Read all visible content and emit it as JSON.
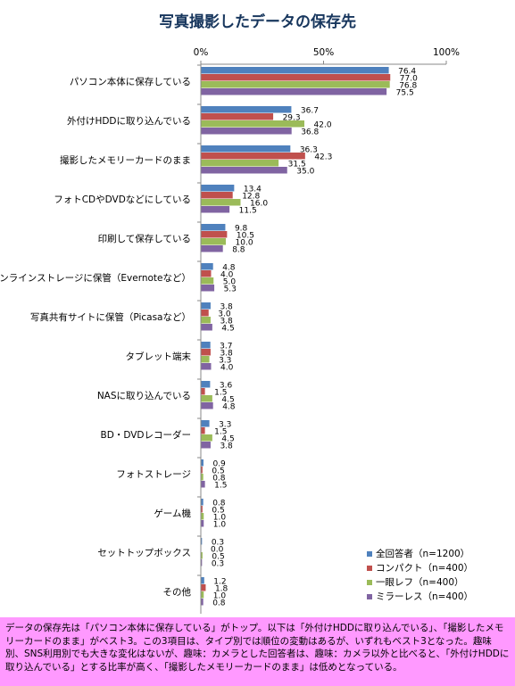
{
  "chart_data": {
    "type": "bar",
    "orientation": "horizontal",
    "title": "写真撮影したデータの保存先",
    "xlim": [
      0,
      100
    ],
    "x_tick_labels": [
      "0%",
      "50%",
      "100%"
    ],
    "x_ticks": [
      0,
      50,
      100
    ],
    "categories": [
      "パソコン本体に保存している",
      "外付けHDDに取り込んでいる",
      "撮影したメモリーカードのまま",
      "フォトCDやDVDなどにしている",
      "印刷して保存している",
      "オンラインストレージに保管（Evernoteなど）",
      "写真共有サイトに保管（Picasaなど）",
      "タブレット端末",
      "NASに取り込んでいる",
      "BD・DVDレコーダー",
      "フォトストレージ",
      "ゲーム機",
      "セットトップボックス",
      "その他"
    ],
    "series": [
      {
        "name": "全回答者（n=1200）",
        "color": "#4F81BD",
        "values": [
          76.4,
          36.7,
          36.3,
          13.4,
          9.8,
          4.8,
          3.8,
          3.7,
          3.6,
          3.3,
          0.9,
          0.8,
          0.3,
          1.2
        ],
        "labels": [
          "76.4",
          "36.7",
          "36.3",
          "13.4",
          "9.8",
          "4.8",
          "3.8",
          "3.7",
          "3.6",
          "3.3",
          "0.9",
          "0.8",
          "0.3",
          "1.2"
        ]
      },
      {
        "name": "コンパクト（n=400）",
        "color": "#C0504D",
        "values": [
          77.0,
          29.3,
          42.3,
          12.8,
          10.5,
          4.0,
          3.0,
          3.8,
          1.5,
          1.5,
          0.5,
          0.5,
          0.0,
          1.8
        ],
        "labels": [
          "77.0",
          "29.3",
          "42.3",
          "12.8",
          "10.5",
          "4.0",
          "3.0",
          "3.8",
          "1.5",
          "1.5",
          "0.5",
          "0.5",
          "0.0",
          "1.8"
        ]
      },
      {
        "name": "一眼レフ（n=400）",
        "color": "#9BBB59",
        "values": [
          76.8,
          42.0,
          31.5,
          16.0,
          10.0,
          5.0,
          3.8,
          3.3,
          4.5,
          4.5,
          0.8,
          1.0,
          0.5,
          1.0
        ],
        "labels": [
          "76.8",
          "42.0",
          "31.5",
          "16.0",
          "10.0",
          "5.0",
          "3.8",
          "3.3",
          "4.5",
          "4.5",
          "0.8",
          "1.0",
          "0.5",
          "1.0"
        ]
      },
      {
        "name": "ミラーレス（n=400）",
        "color": "#8064A2",
        "values": [
          75.5,
          36.8,
          35.0,
          11.5,
          8.8,
          5.3,
          4.5,
          4.0,
          4.8,
          3.8,
          1.5,
          1.0,
          0.3,
          0.8
        ],
        "labels": [
          "75.5",
          "36.8",
          "35.0",
          "11.5",
          "8.8",
          "5.3",
          "4.5",
          "4.0",
          "4.8",
          "3.8",
          "1.5",
          "1.0",
          "0.3",
          "0.8"
        ]
      }
    ],
    "legend_position": "bottom-right",
    "grid": false
  },
  "note": {
    "text": "データの保存先は「パソコン本体に保存している」がトップ。以下は「外付けHDDに取り込んでいる」、「撮影したメモリーカードのまま」がベスト3。この3項目は、タイプ別では順位の変動はあるが、いずれもベスト3となった。趣味別、SNS利用別でも大きな変化はないが、趣味：カメラとした回答者は、趣味：カメラ以外と比べると、「外付けHDDに取り込んでいる」とする比率が高く、「撮影したメモリーカードのまま」は低めとなっている。",
    "background": "#FF99FF"
  }
}
